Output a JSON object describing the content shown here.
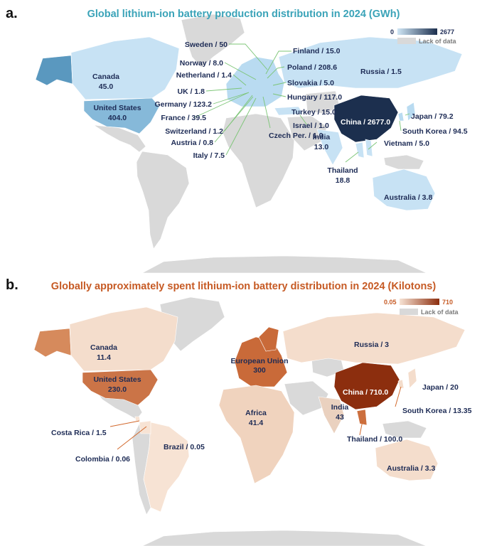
{
  "panel_a": {
    "label": "a.",
    "title": "Global lithium-ion battery production distribution in 2024 (GWh)",
    "legend": {
      "min": "0",
      "max": "2677",
      "nodata": "Lack of data",
      "color_low": "#cfe6f5",
      "color_high": "#1c2f4e"
    },
    "labels": {
      "canada_name": "Canada",
      "canada_value": "45.0",
      "us_name": "United States",
      "us_value": "404.0",
      "sweden": "Sweden / 50",
      "norway": "Norway / 8.0",
      "netherland": "Netherland / 1.4",
      "uk": "UK / 1.8",
      "germany": "Germany / 123.2",
      "france": "France / 39.5",
      "switzerland": "Switzerland / 1.2",
      "austria": "Austria / 0.8",
      "italy": "Italy / 7.5",
      "finland": "Finland / 15.0",
      "poland": "Poland / 208.6",
      "slovakia": "Slovakia / 5.0",
      "hungary": "Hungary / 117.0",
      "turkey": "Turkey / 15.0",
      "israel": "Israel / 1.0",
      "czech": "Czech Per. / 1.0",
      "russia": "Russia / 1.5",
      "china": "China / 2677.0",
      "japan": "Japan / 79.2",
      "south_korea": "South Korea / 94.5",
      "vietnam": "Vietnam / 5.0",
      "india_name": "India",
      "india_value": "13.0",
      "thailand_name": "Thailand",
      "thailand_value": "18.8",
      "australia": "Australia / 3.8"
    }
  },
  "panel_b": {
    "label": "b.",
    "title": "Globally approximately spent lithium-ion battery distribution in 2024 (Kilotons)",
    "legend": {
      "min": "0.05",
      "max": "710",
      "nodata": "Lack of data",
      "color_low": "#f7e3d4",
      "color_high": "#8c2e0e"
    },
    "labels": {
      "canada_name": "Canada",
      "canada_value": "11.4",
      "us_name": "United States",
      "us_value": "230.0",
      "eu_name": "European Union",
      "eu_value": "300",
      "russia": "Russia / 3",
      "china": "China / 710.0",
      "japan": "Japan / 20",
      "south_korea": "South Korea / 13.35",
      "india_name": "India",
      "india_value": "43",
      "thailand": "Thailand / 100.0",
      "africa_name": "Africa",
      "africa_value": "41.4",
      "costa_rica": "Costa Rica / 1.5",
      "colombia": "Colombia / 0.06",
      "brazil": "Brazil / 0.05",
      "australia": "Australia / 3.3"
    }
  },
  "colors": {
    "no_data": "#d9d9d9",
    "leader_a": "#7cc576",
    "leader_b": "#d2692d"
  }
}
